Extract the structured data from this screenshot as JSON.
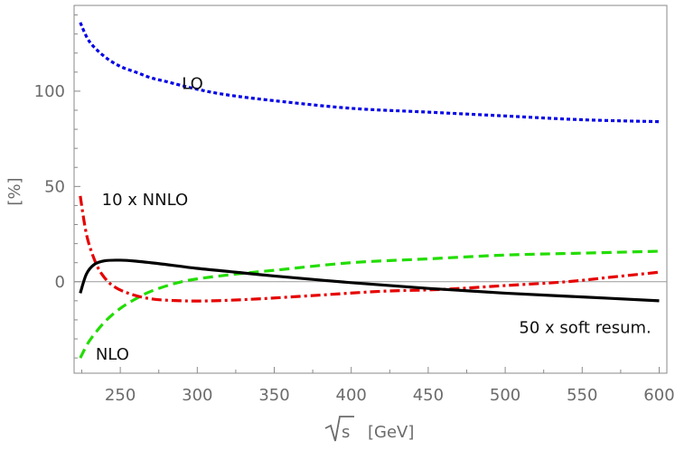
{
  "chart_data": {
    "type": "line",
    "title": "",
    "xlabel_radical": "s",
    "xlabel_unit": "[GeV]",
    "ylabel": "[%]",
    "xlim": [
      220,
      605
    ],
    "ylim": [
      -48,
      145
    ],
    "x_ticks": [
      250,
      300,
      350,
      400,
      450,
      500,
      550,
      600
    ],
    "y_ticks": [
      0,
      50,
      100
    ],
    "zero_line": true,
    "series": [
      {
        "name": "LO",
        "color": "#0000e6",
        "style": "dotted",
        "x": [
          224,
          230,
          240,
          250,
          260,
          270,
          280,
          300,
          320,
          350,
          400,
          450,
          500,
          550,
          600
        ],
        "values": [
          136,
          126,
          118,
          113,
          110,
          107,
          105,
          101,
          98,
          95,
          91,
          89,
          87,
          85,
          84
        ]
      },
      {
        "name": "NLO",
        "color": "#22dd00",
        "style": "dashed",
        "x": [
          224,
          230,
          240,
          250,
          260,
          270,
          285,
          300,
          325,
          350,
          400,
          450,
          500,
          550,
          600
        ],
        "values": [
          -40,
          -31,
          -21,
          -14,
          -9,
          -5,
          -1,
          1.5,
          4,
          6,
          10,
          12,
          14,
          15,
          16
        ]
      },
      {
        "name": "10 x NNLO",
        "color": "#e60000",
        "style": "dashdot",
        "x": [
          224,
          228,
          233,
          238,
          245,
          255,
          270,
          290,
          310,
          340,
          380,
          420,
          460,
          500,
          540,
          570,
          600
        ],
        "values": [
          45,
          25,
          12,
          4,
          -2,
          -6,
          -9,
          -10,
          -10,
          -9,
          -7,
          -5,
          -4,
          -2,
          0,
          2.5,
          5
        ]
      },
      {
        "name": "50 x soft resum.",
        "color": "#000000",
        "style": "solid",
        "x": [
          224,
          228,
          233,
          240,
          250,
          260,
          275,
          300,
          325,
          350,
          400,
          450,
          500,
          550,
          600
        ],
        "values": [
          -6,
          4,
          9,
          11,
          11.3,
          10.8,
          9.5,
          7,
          5,
          3,
          -0.5,
          -3.5,
          -6,
          -8,
          -10
        ]
      }
    ],
    "annotations": [
      {
        "text": "LO",
        "x": 290,
        "y": 104
      },
      {
        "text": "10 x NNLO",
        "x": 238,
        "y": 43
      },
      {
        "text": "NLO",
        "x": 234,
        "y": -38
      },
      {
        "text": "50 x soft resum.",
        "x": 509,
        "y": -24
      }
    ]
  }
}
